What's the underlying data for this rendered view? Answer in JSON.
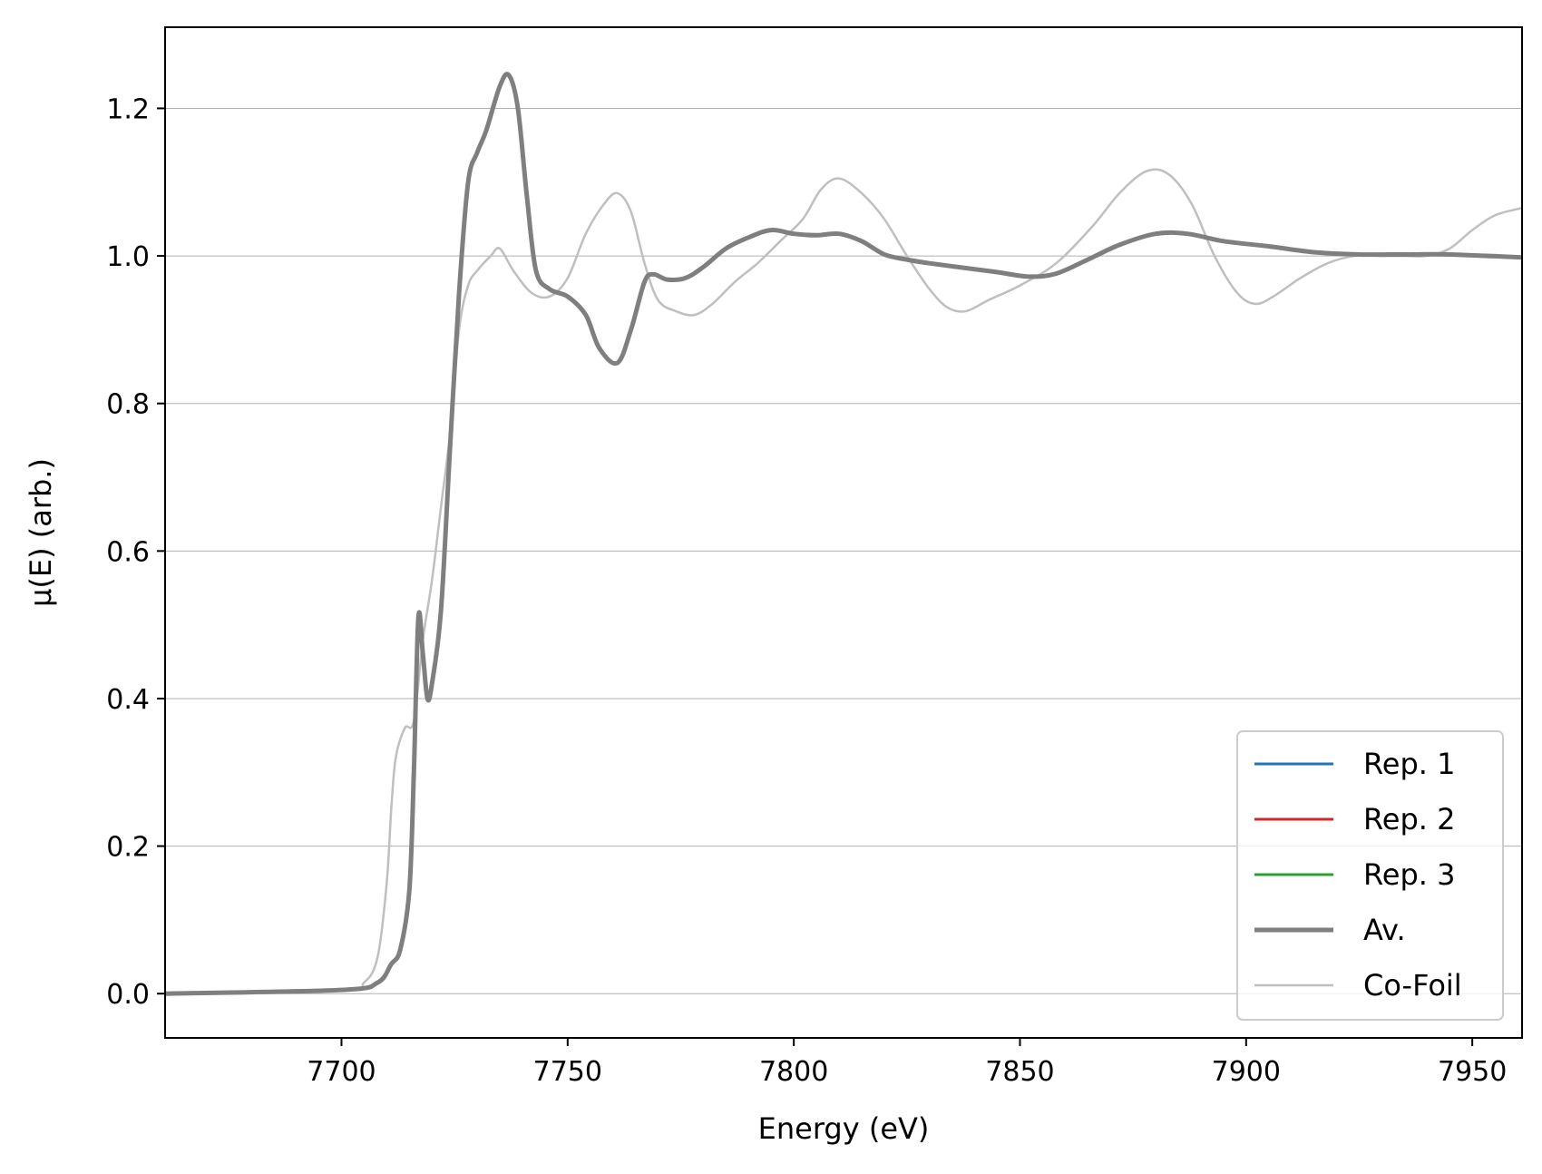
{
  "chart_data": {
    "type": "line",
    "title": "",
    "xlabel": "Energy (eV)",
    "ylabel": "μ(E) (arb.)",
    "xlim": [
      7661,
      7961
    ],
    "ylim": [
      -0.06,
      1.31
    ],
    "xticks": [
      7700,
      7750,
      7800,
      7850,
      7900,
      7950
    ],
    "yticks": [
      0.0,
      0.2,
      0.4,
      0.6,
      0.8,
      1.0,
      1.2
    ],
    "xtick_labels": [
      "7700",
      "7750",
      "7800",
      "7850",
      "7900",
      "7950"
    ],
    "ytick_labels": [
      "0.0",
      "0.2",
      "0.4",
      "0.6",
      "0.8",
      "1.0",
      "1.2"
    ],
    "grid": "horizontal",
    "legend_position": "bottom-right",
    "series": [
      {
        "name": "Rep. 1",
        "color": "#1f77b4",
        "width": 3,
        "x": [
          7661,
          7700,
          7708,
          7711,
          7713,
          7715,
          7716,
          7717,
          7718,
          7719,
          7720,
          7722,
          7724,
          7726,
          7728,
          7730,
          7732,
          7735,
          7737,
          7739,
          7741,
          7743,
          7746,
          7750,
          7754,
          7757,
          7761,
          7764,
          7767,
          7769,
          7772,
          7776,
          7780,
          7785,
          7790,
          7795,
          7800,
          7805,
          7810,
          7815,
          7820,
          7825,
          7830,
          7840,
          7845,
          7852,
          7858,
          7865,
          7872,
          7880,
          7887,
          7895,
          7905,
          7915,
          7925,
          7935,
          7945,
          7961
        ],
        "y": [
          0.0,
          0.005,
          0.015,
          0.04,
          0.06,
          0.14,
          0.3,
          0.51,
          0.46,
          0.4,
          0.42,
          0.52,
          0.74,
          0.95,
          1.1,
          1.14,
          1.17,
          1.23,
          1.245,
          1.2,
          1.08,
          0.98,
          0.955,
          0.945,
          0.92,
          0.875,
          0.855,
          0.9,
          0.965,
          0.975,
          0.968,
          0.97,
          0.985,
          1.01,
          1.025,
          1.035,
          1.03,
          1.028,
          1.03,
          1.02,
          1.002,
          0.995,
          0.99,
          0.982,
          0.978,
          0.972,
          0.976,
          0.995,
          1.015,
          1.03,
          1.03,
          1.02,
          1.013,
          1.005,
          1.002,
          1.002,
          1.002,
          0.998
        ]
      },
      {
        "name": "Rep. 2",
        "color": "#d62728",
        "width": 3,
        "x": [
          7661,
          7700,
          7708,
          7711,
          7713,
          7715,
          7716,
          7717,
          7718,
          7719,
          7720,
          7722,
          7724,
          7726,
          7728,
          7730,
          7732,
          7735,
          7737,
          7739,
          7741,
          7743,
          7746,
          7750,
          7754,
          7757,
          7761,
          7764,
          7767,
          7769,
          7772,
          7776,
          7780,
          7785,
          7790,
          7795,
          7800,
          7805,
          7810,
          7815,
          7820,
          7825,
          7830,
          7840,
          7845,
          7852,
          7858,
          7865,
          7872,
          7880,
          7887,
          7895,
          7905,
          7915,
          7925,
          7935,
          7945,
          7961
        ],
        "y": [
          0.0,
          0.005,
          0.015,
          0.04,
          0.06,
          0.14,
          0.3,
          0.51,
          0.46,
          0.4,
          0.42,
          0.52,
          0.74,
          0.95,
          1.1,
          1.14,
          1.17,
          1.23,
          1.245,
          1.2,
          1.08,
          0.98,
          0.955,
          0.945,
          0.92,
          0.875,
          0.855,
          0.9,
          0.965,
          0.975,
          0.968,
          0.97,
          0.985,
          1.01,
          1.025,
          1.035,
          1.03,
          1.028,
          1.03,
          1.02,
          1.002,
          0.995,
          0.99,
          0.982,
          0.978,
          0.972,
          0.976,
          0.995,
          1.015,
          1.03,
          1.03,
          1.02,
          1.013,
          1.005,
          1.002,
          1.002,
          1.002,
          0.998
        ]
      },
      {
        "name": "Rep. 3",
        "color": "#2ca02c",
        "width": 3,
        "x": [
          7661,
          7700,
          7708,
          7711,
          7713,
          7715,
          7716,
          7717,
          7718,
          7719,
          7720,
          7722,
          7724,
          7726,
          7728,
          7730,
          7732,
          7735,
          7737,
          7739,
          7741,
          7743,
          7746,
          7750,
          7754,
          7757,
          7761,
          7764,
          7767,
          7769,
          7772,
          7776,
          7780,
          7785,
          7790,
          7795,
          7800,
          7805,
          7810,
          7815,
          7820,
          7825,
          7830,
          7840,
          7845,
          7852,
          7858,
          7865,
          7872,
          7880,
          7887,
          7895,
          7905,
          7915,
          7925,
          7935,
          7945,
          7961
        ],
        "y": [
          0.0,
          0.005,
          0.015,
          0.04,
          0.06,
          0.14,
          0.3,
          0.51,
          0.46,
          0.4,
          0.42,
          0.52,
          0.74,
          0.95,
          1.1,
          1.14,
          1.17,
          1.23,
          1.245,
          1.2,
          1.08,
          0.98,
          0.955,
          0.945,
          0.92,
          0.875,
          0.855,
          0.9,
          0.965,
          0.975,
          0.968,
          0.97,
          0.985,
          1.01,
          1.025,
          1.035,
          1.03,
          1.028,
          1.03,
          1.02,
          1.002,
          0.995,
          0.99,
          0.982,
          0.978,
          0.972,
          0.976,
          0.995,
          1.015,
          1.03,
          1.03,
          1.02,
          1.013,
          1.005,
          1.002,
          1.002,
          1.002,
          0.998
        ]
      },
      {
        "name": "Av.",
        "color": "#7f7f7f",
        "width": 5,
        "x": [
          7661,
          7700,
          7708,
          7711,
          7713,
          7715,
          7716,
          7717,
          7718,
          7719,
          7720,
          7722,
          7724,
          7726,
          7728,
          7730,
          7732,
          7735,
          7737,
          7739,
          7741,
          7743,
          7746,
          7750,
          7754,
          7757,
          7761,
          7764,
          7767,
          7769,
          7772,
          7776,
          7780,
          7785,
          7790,
          7795,
          7800,
          7805,
          7810,
          7815,
          7820,
          7825,
          7830,
          7840,
          7845,
          7852,
          7858,
          7865,
          7872,
          7880,
          7887,
          7895,
          7905,
          7915,
          7925,
          7935,
          7945,
          7961
        ],
        "y": [
          0.0,
          0.005,
          0.015,
          0.04,
          0.06,
          0.14,
          0.3,
          0.51,
          0.46,
          0.4,
          0.42,
          0.52,
          0.74,
          0.95,
          1.1,
          1.14,
          1.17,
          1.23,
          1.245,
          1.2,
          1.08,
          0.98,
          0.955,
          0.945,
          0.92,
          0.875,
          0.855,
          0.9,
          0.965,
          0.975,
          0.968,
          0.97,
          0.985,
          1.01,
          1.025,
          1.035,
          1.03,
          1.028,
          1.03,
          1.02,
          1.002,
          0.995,
          0.99,
          0.982,
          0.978,
          0.972,
          0.976,
          0.995,
          1.015,
          1.03,
          1.03,
          1.02,
          1.013,
          1.005,
          1.002,
          1.002,
          1.002,
          0.998
        ]
      },
      {
        "name": "Co-Foil",
        "color": "#bfbfbf",
        "width": 2.5,
        "x": [
          7661,
          7700,
          7705,
          7708,
          7710,
          7711,
          7712,
          7714,
          7716,
          7718,
          7720,
          7722,
          7724,
          7726,
          7728,
          7730,
          7733,
          7735,
          7738,
          7742,
          7746,
          7750,
          7754,
          7758,
          7761,
          7764,
          7767,
          7770,
          7774,
          7778,
          7782,
          7787,
          7792,
          7797,
          7802,
          7806,
          7810,
          7815,
          7820,
          7825,
          7830,
          7834,
          7838,
          7843,
          7850,
          7858,
          7866,
          7872,
          7878,
          7883,
          7888,
          7893,
          7898,
          7902,
          7906,
          7912,
          7918,
          7924,
          7930,
          7935,
          7940,
          7945,
          7950,
          7955,
          7961
        ],
        "y": [
          0.0,
          0.005,
          0.015,
          0.05,
          0.15,
          0.25,
          0.32,
          0.36,
          0.37,
          0.48,
          0.56,
          0.66,
          0.76,
          0.9,
          0.96,
          0.98,
          1.0,
          1.01,
          0.98,
          0.95,
          0.945,
          0.97,
          1.03,
          1.07,
          1.085,
          1.06,
          0.99,
          0.94,
          0.925,
          0.92,
          0.935,
          0.965,
          0.99,
          1.02,
          1.05,
          1.09,
          1.105,
          1.085,
          1.05,
          1.0,
          0.955,
          0.93,
          0.925,
          0.94,
          0.96,
          0.99,
          1.04,
          1.085,
          1.115,
          1.11,
          1.07,
          1.0,
          0.95,
          0.935,
          0.945,
          0.97,
          0.99,
          1.0,
          1.0,
          1.0,
          1.0,
          1.01,
          1.035,
          1.055,
          1.065
        ]
      }
    ]
  }
}
